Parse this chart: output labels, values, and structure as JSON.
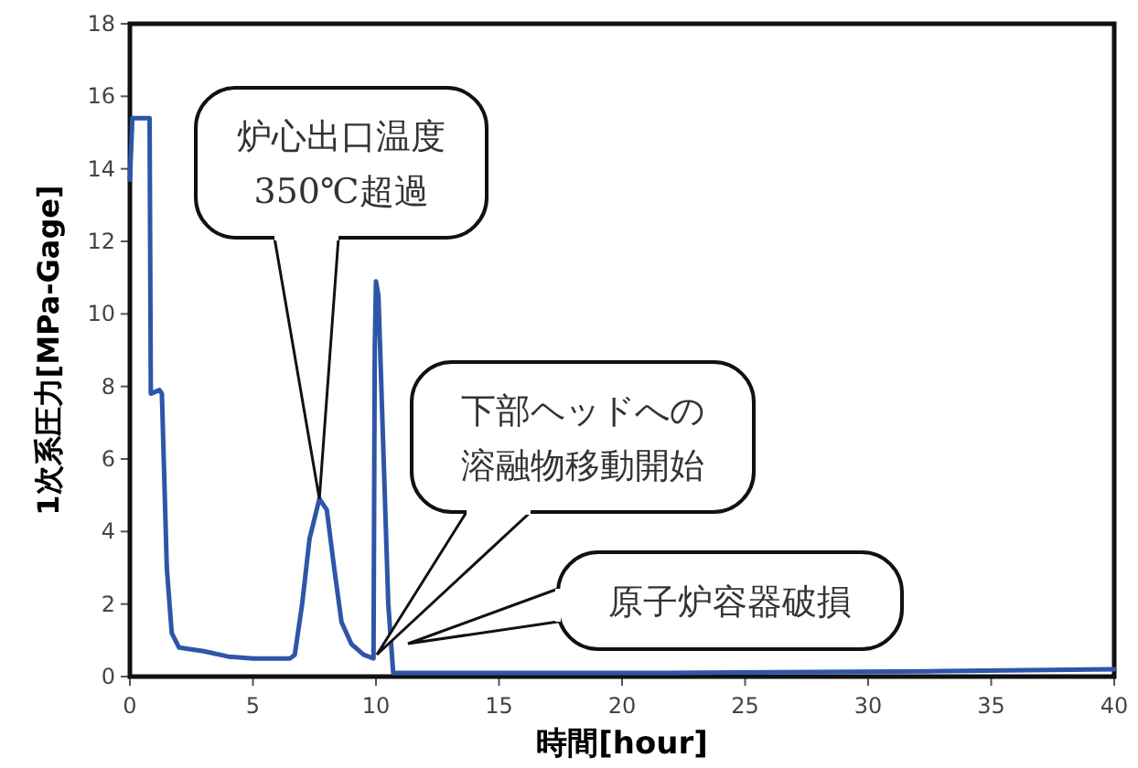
{
  "chart_data": {
    "type": "line",
    "xlabel": "時間[hour]",
    "ylabel": "1次系圧力[MPa-Gage]",
    "xlim": [
      0,
      40
    ],
    "xticks": [
      0,
      5,
      10,
      15,
      20,
      25,
      30,
      35,
      40
    ],
    "ylim": [
      0,
      18
    ],
    "yticks": [
      0,
      2,
      4,
      6,
      8,
      10,
      12,
      14,
      16,
      18
    ],
    "line_style": "solid",
    "series": [
      {
        "color": "#2e56a8",
        "x": [
          0,
          0.1,
          0.8,
          0.85,
          1.2,
          1.3,
          1.5,
          1.7,
          2,
          3,
          4,
          5,
          6.5,
          6.7,
          7,
          7.3,
          7.7,
          8,
          8.3,
          8.6,
          9,
          9.5,
          9.9,
          9.95,
          10,
          10.1,
          10.5,
          10.7,
          22,
          33,
          40
        ],
        "values": [
          13.7,
          15.4,
          15.4,
          7.8,
          7.9,
          7.8,
          3,
          1.2,
          0.8,
          0.7,
          0.55,
          0.5,
          0.5,
          0.6,
          2,
          3.8,
          4.9,
          4.6,
          3,
          1.5,
          0.9,
          0.6,
          0.5,
          9,
          10.9,
          10.5,
          2,
          0.1,
          0.1,
          0.15,
          0.2
        ]
      }
    ],
    "annotations": [
      {
        "text": "炉心出口温度350℃超過",
        "x": 7.7,
        "y": 4.9
      },
      "下部ヘッドへの溶融物移動開始",
      "原子炉容器破損"
    ]
  }
}
